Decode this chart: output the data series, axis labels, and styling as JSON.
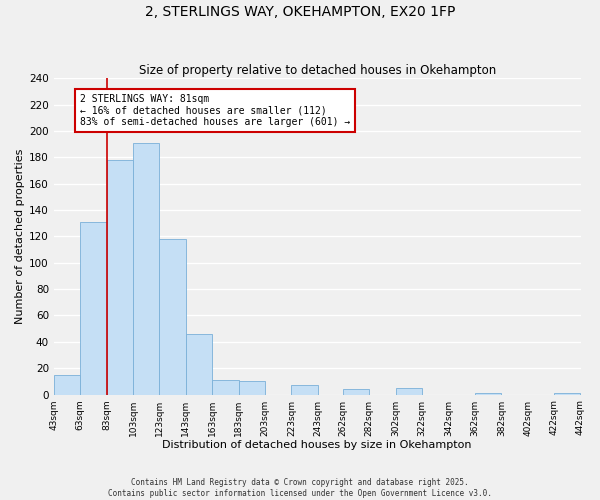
{
  "title": "2, STERLINGS WAY, OKEHAMPTON, EX20 1FP",
  "subtitle": "Size of property relative to detached houses in Okehampton",
  "xlabel": "Distribution of detached houses by size in Okehampton",
  "ylabel": "Number of detached properties",
  "bar_color": "#c5dff5",
  "bar_edge_color": "#7ab0d8",
  "background_color": "#f0f0f0",
  "grid_color": "#ffffff",
  "bin_edges": [
    43,
    63,
    83,
    103,
    123,
    143,
    163,
    183,
    203,
    223,
    243,
    262,
    282,
    302,
    322,
    342,
    362,
    382,
    402,
    422,
    442
  ],
  "bin_labels": [
    "43sqm",
    "63sqm",
    "83sqm",
    "103sqm",
    "123sqm",
    "143sqm",
    "163sqm",
    "183sqm",
    "203sqm",
    "223sqm",
    "243sqm",
    "262sqm",
    "282sqm",
    "302sqm",
    "322sqm",
    "342sqm",
    "362sqm",
    "382sqm",
    "402sqm",
    "422sqm",
    "442sqm"
  ],
  "bar_heights": [
    15,
    131,
    178,
    191,
    118,
    46,
    11,
    10,
    0,
    7,
    0,
    4,
    0,
    5,
    0,
    0,
    1,
    0,
    0,
    1
  ],
  "ylim": [
    0,
    240
  ],
  "yticks": [
    0,
    20,
    40,
    60,
    80,
    100,
    120,
    140,
    160,
    180,
    200,
    220,
    240
  ],
  "vline_x": 83,
  "vline_color": "#cc0000",
  "annotation_text": "2 STERLINGS WAY: 81sqm\n← 16% of detached houses are smaller (112)\n83% of semi-detached houses are larger (601) →",
  "annotation_box_color": "#ffffff",
  "annotation_box_edge": "#cc0000",
  "footer_line1": "Contains HM Land Registry data © Crown copyright and database right 2025.",
  "footer_line2": "Contains public sector information licensed under the Open Government Licence v3.0.",
  "figsize": [
    6.0,
    5.0
  ],
  "dpi": 100
}
